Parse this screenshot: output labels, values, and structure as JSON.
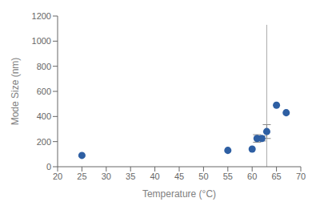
{
  "chart_data": {
    "type": "scatter",
    "xlabel": "Temperature (°C)",
    "ylabel": "Mode Size (nm)",
    "x": [
      25,
      55,
      60,
      61,
      62,
      63,
      65,
      67
    ],
    "y": [
      90,
      130,
      140,
      225,
      225,
      280,
      490,
      430
    ],
    "yerr": [
      null,
      null,
      null,
      30,
      20,
      55,
      null,
      null
    ],
    "color": "#2E5FA3",
    "error_color": "#888888",
    "vline": {
      "x": 63,
      "y": [
        0,
        1130
      ],
      "color": "#aaaaaa"
    },
    "xlim": [
      20,
      70
    ],
    "ylim": [
      0,
      1200
    ],
    "xticks": [
      20,
      25,
      30,
      35,
      40,
      45,
      50,
      55,
      60,
      65,
      70
    ],
    "yticks": [
      0,
      200,
      400,
      600,
      800,
      1000,
      1200
    ],
    "grid": false
  }
}
